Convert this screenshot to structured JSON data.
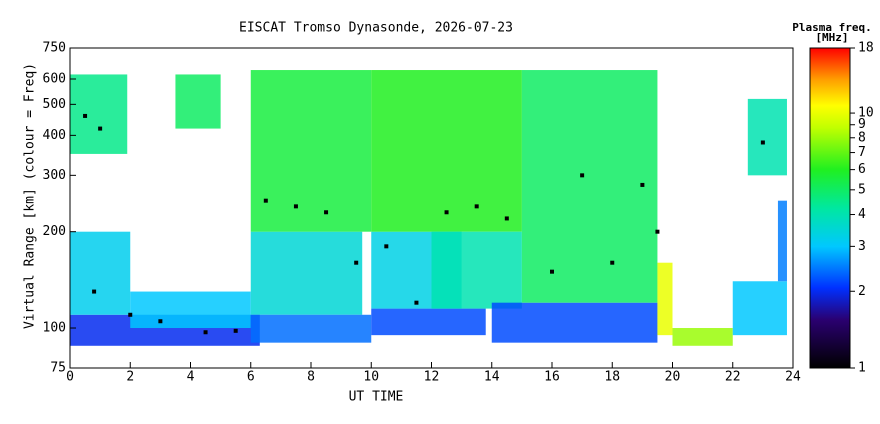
{
  "chart_data": {
    "type": "heatmap",
    "title": "EISCAT Tromso Dynasonde, 2026-07-23",
    "xlabel": "UT TIME",
    "ylabel": "Virtual Range [km] (colour = Freq)",
    "colorbar_title": [
      "Plasma freq.",
      "[MHz]"
    ],
    "xlim": [
      0,
      24
    ],
    "xticks": [
      0,
      2,
      4,
      6,
      8,
      10,
      12,
      14,
      16,
      18,
      20,
      22,
      24
    ],
    "ylim": [
      75,
      750
    ],
    "yticks": [
      75,
      100,
      200,
      300,
      400,
      500,
      600,
      750
    ],
    "ylog": true,
    "clim": [
      1,
      18
    ],
    "cticks": [
      1,
      2,
      3,
      4,
      5,
      6,
      7,
      8,
      9,
      10,
      18
    ],
    "clog": true,
    "cells": {
      "x0": [
        0,
        0,
        0,
        2,
        3.5,
        6,
        6,
        6,
        10,
        10,
        10,
        12,
        14,
        15,
        19.5,
        20,
        22,
        22.5,
        23.5
      ],
      "x1": [
        6.3,
        2,
        1.9,
        6,
        5,
        9.7,
        10,
        10,
        13.8,
        13,
        15,
        15,
        19.5,
        19.5,
        20,
        22,
        23.8,
        23.8,
        23.8
      ],
      "y0": [
        88,
        110,
        350,
        100,
        420,
        110,
        200,
        90,
        95,
        115,
        200,
        115,
        90,
        120,
        95,
        88,
        95,
        300,
        140
      ],
      "y1": [
        110,
        200,
        620,
        130,
        620,
        200,
        640,
        110,
        115,
        200,
        640,
        200,
        120,
        640,
        160,
        100,
        140,
        520,
        250
      ],
      "values": [
        2,
        3.2,
        4.5,
        3,
        5,
        3.5,
        5.5,
        2.4,
        2.2,
        3.3,
        6,
        4,
        2.2,
        5,
        10,
        8,
        3,
        4,
        2.5
      ]
    },
    "peaks": {
      "x": [
        0.5,
        1,
        0.8,
        2,
        3,
        4.5,
        5.5,
        6.5,
        7.5,
        8.5,
        9.5,
        10.5,
        11.5,
        12.5,
        13.5,
        14.5,
        16,
        17,
        18,
        19,
        19.5,
        23
      ],
      "y": [
        460,
        420,
        130,
        110,
        105,
        97,
        98,
        250,
        240,
        230,
        160,
        180,
        120,
        230,
        240,
        220,
        150,
        300,
        160,
        280,
        200,
        380
      ]
    }
  }
}
